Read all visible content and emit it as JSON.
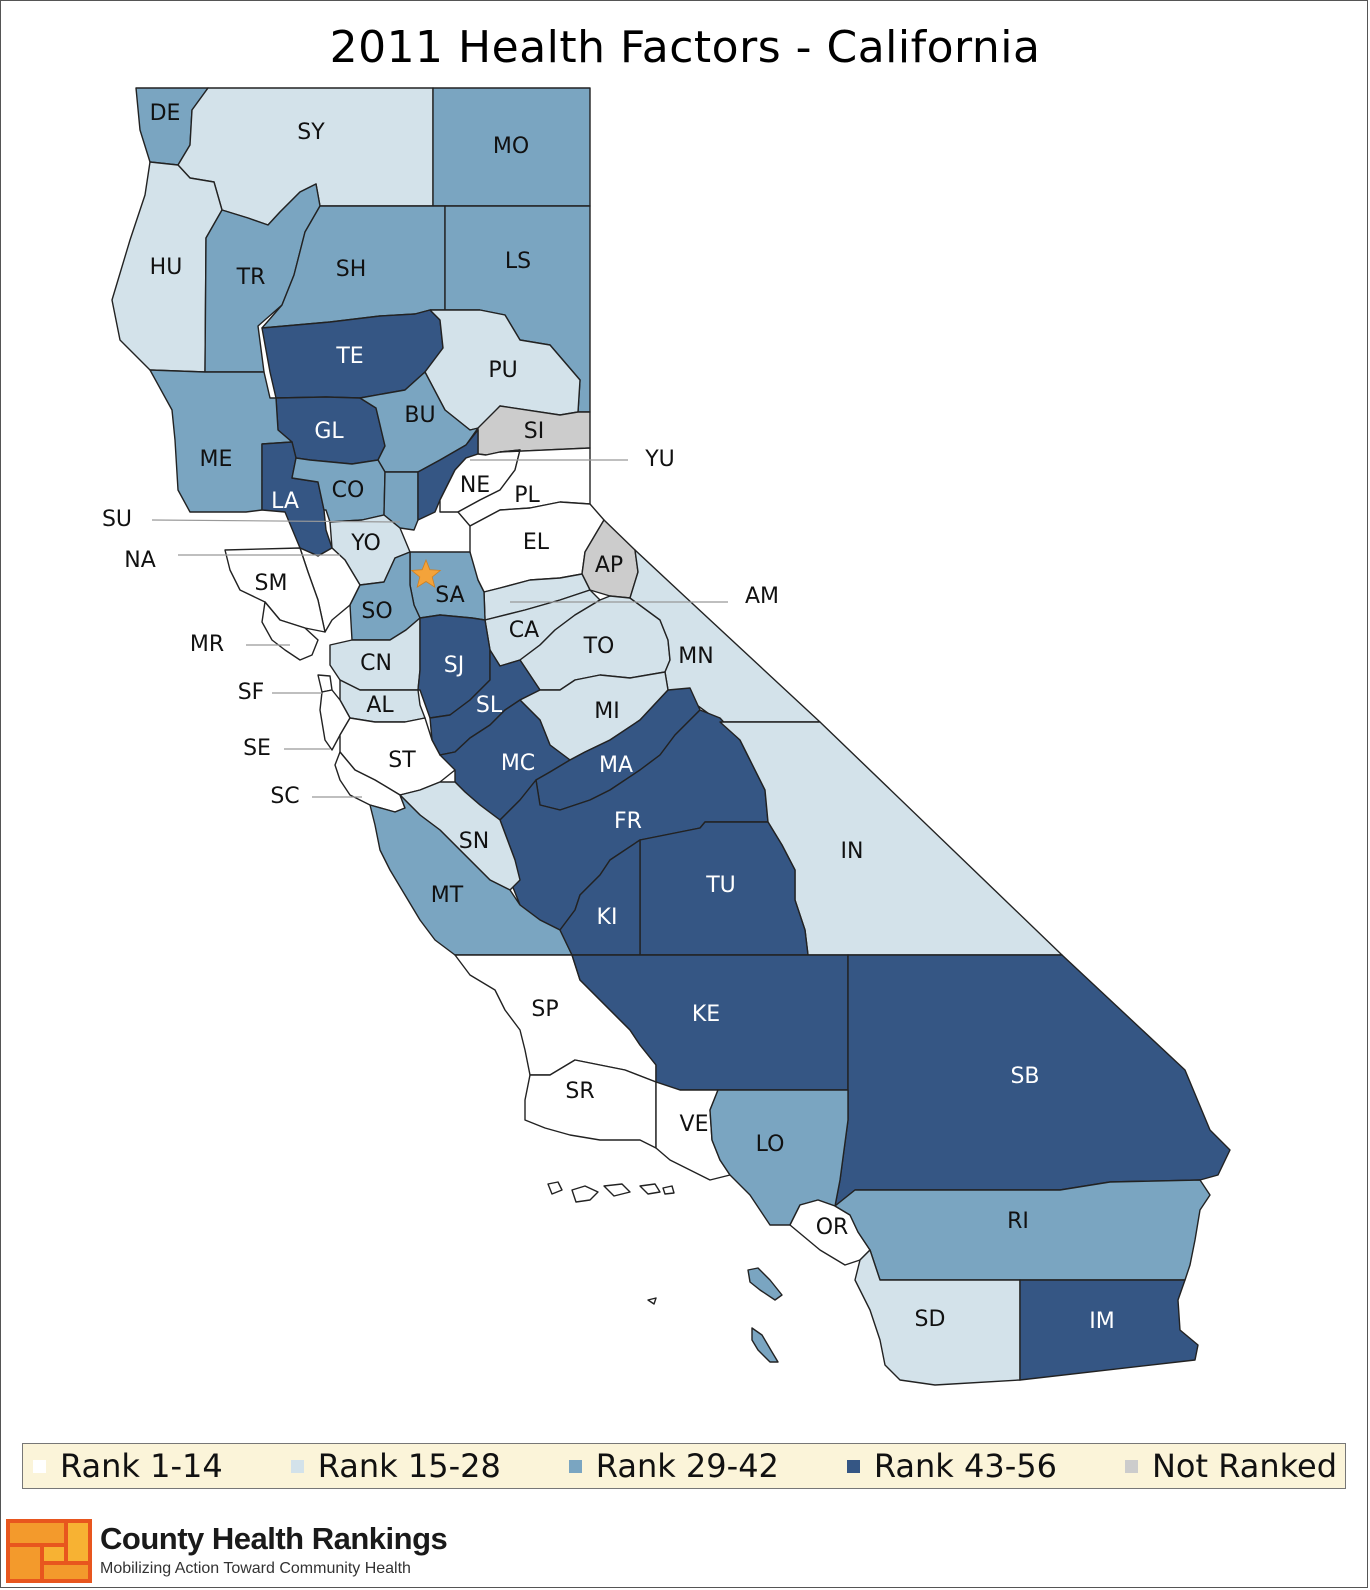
{
  "title": "2011 Health Factors - California",
  "legend": [
    {
      "key": "r1",
      "label": "Rank 1-14",
      "color": "#ffffff"
    },
    {
      "key": "r2",
      "label": "Rank 15-28",
      "color": "#d3e2ea"
    },
    {
      "key": "r3",
      "label": "Rank 29-42",
      "color": "#7aa5c1"
    },
    {
      "key": "r4",
      "label": "Rank 43-56",
      "color": "#355684"
    },
    {
      "key": "nr",
      "label": "Not Ranked",
      "color": "#cccccc"
    }
  ],
  "counties": [
    {
      "abbr": "DE",
      "rank_group": "r3"
    },
    {
      "abbr": "SY",
      "rank_group": "r2"
    },
    {
      "abbr": "MO",
      "rank_group": "r3"
    },
    {
      "abbr": "HU",
      "rank_group": "r2"
    },
    {
      "abbr": "TR",
      "rank_group": "r3"
    },
    {
      "abbr": "SH",
      "rank_group": "r3"
    },
    {
      "abbr": "LS",
      "rank_group": "r3"
    },
    {
      "abbr": "TE",
      "rank_group": "r4"
    },
    {
      "abbr": "PU",
      "rank_group": "r2"
    },
    {
      "abbr": "GL",
      "rank_group": "r4"
    },
    {
      "abbr": "BU",
      "rank_group": "r3"
    },
    {
      "abbr": "SI",
      "rank_group": "nr"
    },
    {
      "abbr": "ME",
      "rank_group": "r3"
    },
    {
      "abbr": "LA",
      "rank_group": "r4"
    },
    {
      "abbr": "CO",
      "rank_group": "r3"
    },
    {
      "abbr": "SU",
      "rank_group": "r3"
    },
    {
      "abbr": "YU",
      "rank_group": "r4"
    },
    {
      "abbr": "NE",
      "rank_group": "r1"
    },
    {
      "abbr": "PL",
      "rank_group": "r1"
    },
    {
      "abbr": "YO",
      "rank_group": "r2"
    },
    {
      "abbr": "NA",
      "rank_group": "r1"
    },
    {
      "abbr": "EL",
      "rank_group": "r1"
    },
    {
      "abbr": "AP",
      "rank_group": "nr"
    },
    {
      "abbr": "AM",
      "rank_group": "r2"
    },
    {
      "abbr": "SM",
      "rank_group": "r1"
    },
    {
      "abbr": "SA",
      "rank_group": "r3"
    },
    {
      "abbr": "SO",
      "rank_group": "r3"
    },
    {
      "abbr": "MR",
      "rank_group": "r1"
    },
    {
      "abbr": "CA",
      "rank_group": "r2"
    },
    {
      "abbr": "TO",
      "rank_group": "r2"
    },
    {
      "abbr": "MN",
      "rank_group": "r2"
    },
    {
      "abbr": "CN",
      "rank_group": "r2"
    },
    {
      "abbr": "SJ",
      "rank_group": "r4"
    },
    {
      "abbr": "SF",
      "rank_group": "r1"
    },
    {
      "abbr": "AL",
      "rank_group": "r2"
    },
    {
      "abbr": "SL",
      "rank_group": "r4"
    },
    {
      "abbr": "MI",
      "rank_group": "r2"
    },
    {
      "abbr": "SE",
      "rank_group": "r1"
    },
    {
      "abbr": "ST",
      "rank_group": "r1"
    },
    {
      "abbr": "MC",
      "rank_group": "r4"
    },
    {
      "abbr": "MA",
      "rank_group": "r4"
    },
    {
      "abbr": "SC",
      "rank_group": "r1"
    },
    {
      "abbr": "FR",
      "rank_group": "r4"
    },
    {
      "abbr": "IN",
      "rank_group": "r2"
    },
    {
      "abbr": "SN",
      "rank_group": "r2"
    },
    {
      "abbr": "MT",
      "rank_group": "r3"
    },
    {
      "abbr": "TU",
      "rank_group": "r4"
    },
    {
      "abbr": "KI",
      "rank_group": "r4"
    },
    {
      "abbr": "SP",
      "rank_group": "r1"
    },
    {
      "abbr": "KE",
      "rank_group": "r4"
    },
    {
      "abbr": "SB",
      "rank_group": "r4"
    },
    {
      "abbr": "SR",
      "rank_group": "r1"
    },
    {
      "abbr": "VE",
      "rank_group": "r1"
    },
    {
      "abbr": "LO",
      "rank_group": "r3"
    },
    {
      "abbr": "OR",
      "rank_group": "r1"
    },
    {
      "abbr": "RI",
      "rank_group": "r3"
    },
    {
      "abbr": "SD",
      "rank_group": "r2"
    },
    {
      "abbr": "IM",
      "rank_group": "r4"
    }
  ],
  "marker": {
    "type": "star",
    "color": "#f4a33a",
    "meaning": "state capital"
  },
  "brand": {
    "name": "County Health Rankings",
    "tagline": "Mobilizing Action Toward Community Health"
  }
}
